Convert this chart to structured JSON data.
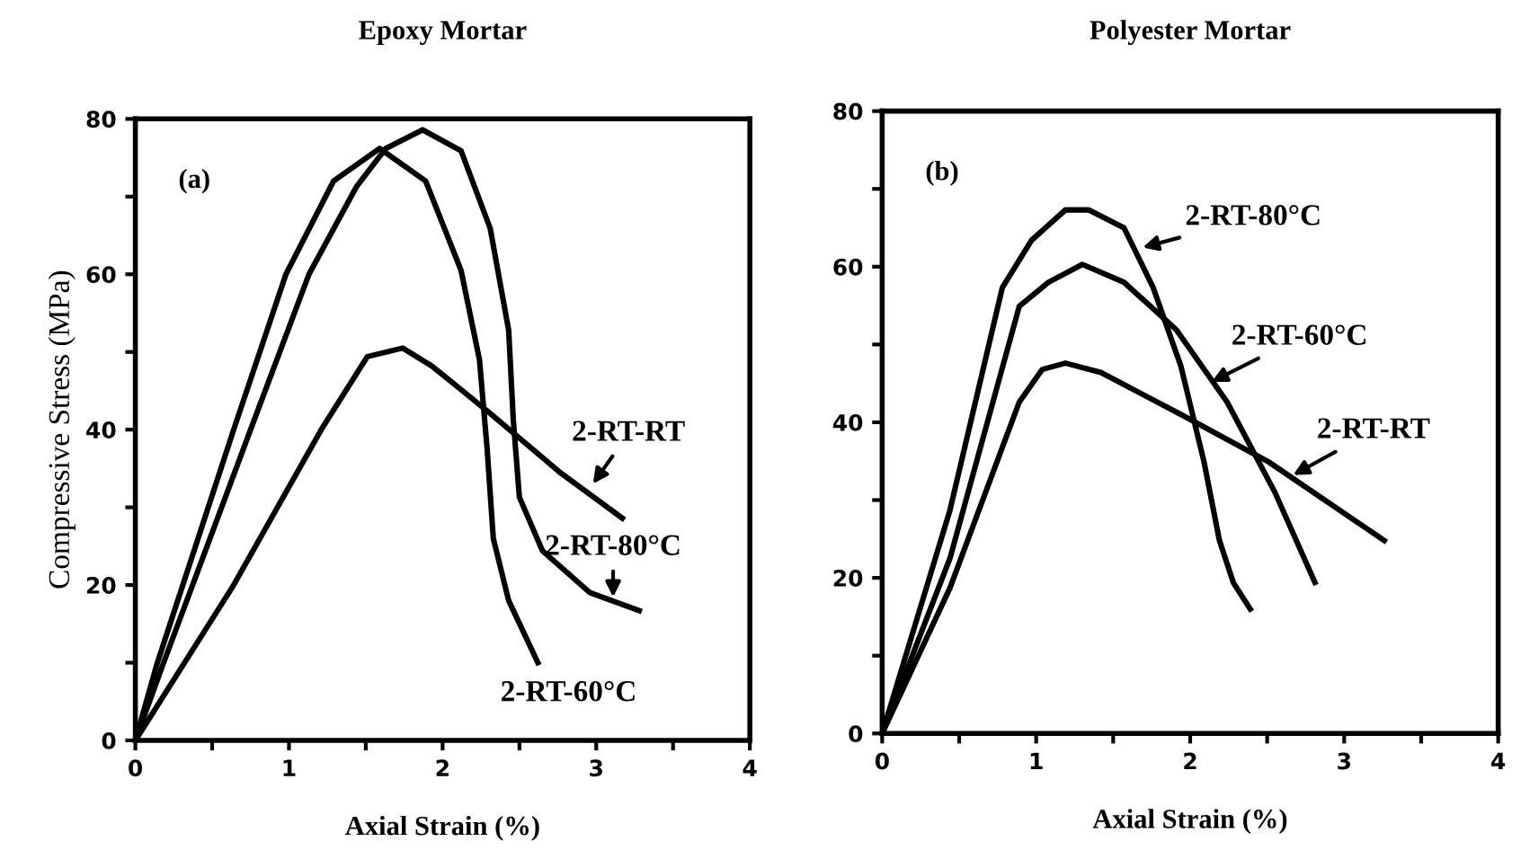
{
  "chart_data": [
    {
      "type": "line",
      "title": "Epoxy Mortar",
      "xlabel": "Axial Strain (%)",
      "ylabel": "Compressive Stress (MPa)",
      "series": [
        {
          "color": "#000000",
          "x": [
            0,
            0.14,
            0.64,
            0.98,
            1.29,
            1.59,
            1.89,
            2.12,
            2.24,
            2.29,
            2.33,
            2.43,
            2.62
          ],
          "values": [
            0,
            9.8,
            40,
            60,
            72,
            76.2,
            72,
            60.5,
            49,
            37.5,
            26,
            18,
            10
          ]
        },
        {
          "color": "#000000",
          "x": [
            0,
            0.18,
            0.75,
            1.13,
            1.44,
            1.63,
            1.87,
            2.12,
            2.31,
            2.43,
            2.46,
            2.5,
            2.65,
            2.96,
            3.28
          ],
          "values": [
            0,
            9.8,
            40,
            60,
            71.3,
            76.2,
            78.6,
            75.9,
            65.9,
            52.8,
            41.3,
            31.3,
            24.4,
            19,
            16.7
          ]
        },
        {
          "color": "#000000",
          "x": [
            0,
            0.64,
            1.21,
            1.51,
            1.74,
            1.93,
            2.31,
            2.77,
            3.17
          ],
          "values": [
            0,
            20,
            40,
            49.4,
            50.5,
            48.2,
            42.1,
            34.4,
            28.6
          ]
        }
      ],
      "annotations": [
        "(a)",
        {
          "text": "2-RT-RT",
          "x": 2.96,
          "y": 32.5
        },
        {
          "text": "2-RT-80°C",
          "x": 3.11,
          "y": 17.8
        },
        {
          "text": "2-RT-60°C",
          "x": 2.62,
          "y": 10
        }
      ],
      "xlim": [
        0,
        4
      ],
      "ylim": [
        0,
        80
      ],
      "xticks": [
        0,
        {
          "value": 0.5,
          "label": null
        },
        1,
        {
          "value": 1.5,
          "label": null
        },
        2,
        {
          "value": 2.5,
          "label": null
        },
        3,
        {
          "value": 3.5,
          "label": null
        },
        4
      ],
      "yticks": [
        0,
        {
          "value": 10,
          "label": null
        },
        20,
        {
          "value": 30,
          "label": null
        },
        40,
        {
          "value": 50,
          "label": null
        },
        60,
        {
          "value": 70,
          "label": null
        },
        80
      ],
      "grid": false
    },
    {
      "type": "line",
      "title": "Polyester Mortar",
      "xlabel": "Axial Strain (%)",
      "series": [
        {
          "color": "#000000",
          "x": [
            0,
            0.44,
            0.78,
            0.97,
            1.19,
            1.34,
            1.57,
            1.76,
            1.94,
            2.09,
            2.19,
            2.28,
            2.39
          ],
          "values": [
            0,
            28.7,
            57.3,
            63.4,
            67.3,
            67.3,
            65,
            57.3,
            47.2,
            34.9,
            24.8,
            19.4,
            16
          ]
        },
        {
          "color": "#000000",
          "x": [
            0,
            0.44,
            0.89,
            1.08,
            1.3,
            1.57,
            1.91,
            2.24,
            2.55,
            2.81
          ],
          "values": [
            0,
            22.5,
            54.9,
            58,
            60.3,
            58,
            51.9,
            42.6,
            31,
            19.4
          ]
        },
        {
          "color": "#000000",
          "x": [
            0,
            0.44,
            0.89,
            1.04,
            1.19,
            1.42,
            1.94,
            2.51,
            3.26
          ],
          "values": [
            0,
            18.7,
            42.6,
            46.8,
            47.6,
            46.4,
            41,
            34.9,
            24.8
          ]
        }
      ],
      "annotations": [
        "(b)",
        {
          "text": "2-RT-80°C",
          "x": 1.66,
          "y": 62.3
        },
        {
          "text": "2-RT-60°C",
          "x": 2.11,
          "y": 44.9
        },
        {
          "text": "2-RT-RT",
          "x": 2.64,
          "y": 32.9
        }
      ],
      "xlim": [
        0,
        4
      ],
      "ylim": [
        0,
        80
      ],
      "xticks": [
        0,
        {
          "value": 0.5,
          "label": null
        },
        1,
        {
          "value": 1.5,
          "label": null
        },
        2,
        {
          "value": 2.5,
          "label": null
        },
        3,
        {
          "value": 3.5,
          "label": null
        },
        4
      ],
      "yticks": [
        0,
        {
          "value": 10,
          "label": null
        },
        20,
        {
          "value": 30,
          "label": null
        },
        40,
        {
          "value": 50,
          "label": null
        },
        60,
        {
          "value": 70,
          "label": null
        },
        80
      ],
      "grid": false
    }
  ]
}
